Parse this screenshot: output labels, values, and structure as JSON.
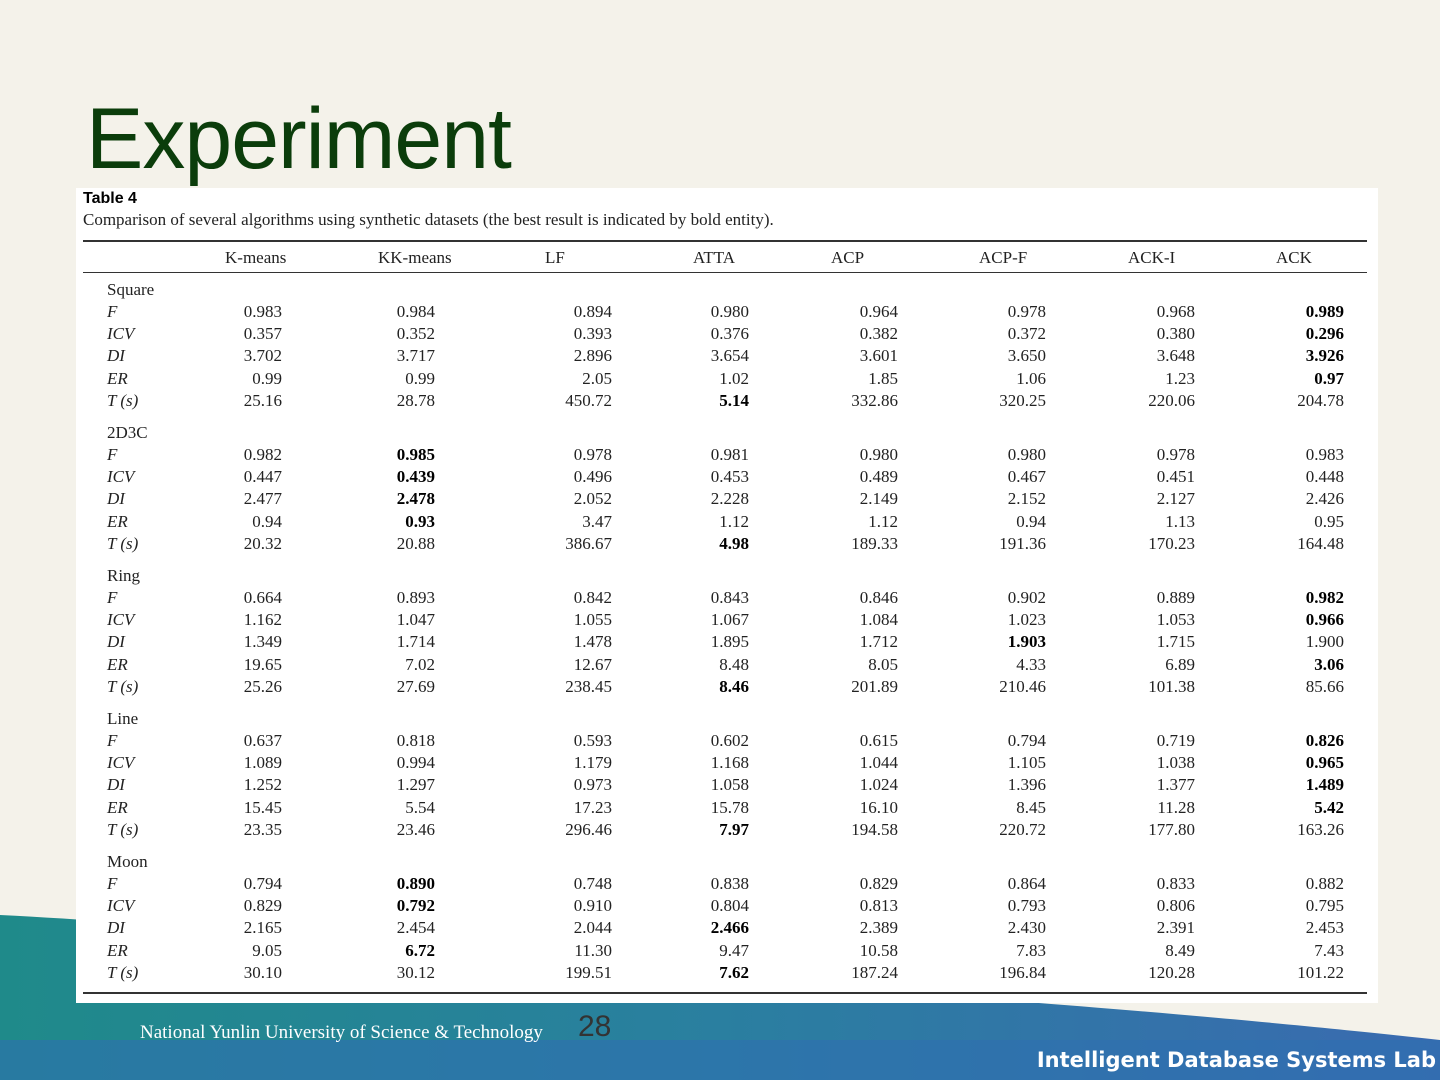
{
  "slide": {
    "title": "Experiment",
    "page_number": "28",
    "university": "National Yunlin University of Science & Technology",
    "lab": "Intelligent Database Systems Lab"
  },
  "table": {
    "label": "Table 4",
    "caption": "Comparison of several algorithms using synthetic datasets (the best result is indicated by bold entity).",
    "columns": [
      "K-means",
      "KK-means",
      "LF",
      "ATTA",
      "ACP",
      "ACP-F",
      "ACK-I",
      "ACK"
    ],
    "groups": [
      {
        "name": "Square",
        "rows": [
          {
            "label": "F",
            "values": [
              "0.983",
              "0.984",
              "0.894",
              "0.980",
              "0.964",
              "0.978",
              "0.968",
              "0.989"
            ],
            "bold": [
              7
            ]
          },
          {
            "label": "ICV",
            "values": [
              "0.357",
              "0.352",
              "0.393",
              "0.376",
              "0.382",
              "0.372",
              "0.380",
              "0.296"
            ],
            "bold": [
              7
            ]
          },
          {
            "label": "DI",
            "values": [
              "3.702",
              "3.717",
              "2.896",
              "3.654",
              "3.601",
              "3.650",
              "3.648",
              "3.926"
            ],
            "bold": [
              7
            ]
          },
          {
            "label": "ER",
            "values": [
              "0.99",
              "0.99",
              "2.05",
              "1.02",
              "1.85",
              "1.06",
              "1.23",
              "0.97"
            ],
            "bold": [
              7
            ]
          },
          {
            "label": "T (s)",
            "values": [
              "25.16",
              "28.78",
              "450.72",
              "5.14",
              "332.86",
              "320.25",
              "220.06",
              "204.78"
            ],
            "bold": [
              3
            ]
          }
        ]
      },
      {
        "name": "2D3C",
        "rows": [
          {
            "label": "F",
            "values": [
              "0.982",
              "0.985",
              "0.978",
              "0.981",
              "0.980",
              "0.980",
              "0.978",
              "0.983"
            ],
            "bold": [
              1
            ]
          },
          {
            "label": "ICV",
            "values": [
              "0.447",
              "0.439",
              "0.496",
              "0.453",
              "0.489",
              "0.467",
              "0.451",
              "0.448"
            ],
            "bold": [
              1
            ]
          },
          {
            "label": "DI",
            "values": [
              "2.477",
              "2.478",
              "2.052",
              "2.228",
              "2.149",
              "2.152",
              "2.127",
              "2.426"
            ],
            "bold": [
              1
            ]
          },
          {
            "label": "ER",
            "values": [
              "0.94",
              "0.93",
              "3.47",
              "1.12",
              "1.12",
              "0.94",
              "1.13",
              "0.95"
            ],
            "bold": [
              1
            ]
          },
          {
            "label": "T (s)",
            "values": [
              "20.32",
              "20.88",
              "386.67",
              "4.98",
              "189.33",
              "191.36",
              "170.23",
              "164.48"
            ],
            "bold": [
              3
            ]
          }
        ]
      },
      {
        "name": "Ring",
        "rows": [
          {
            "label": "F",
            "values": [
              "0.664",
              "0.893",
              "0.842",
              "0.843",
              "0.846",
              "0.902",
              "0.889",
              "0.982"
            ],
            "bold": [
              7
            ]
          },
          {
            "label": "ICV",
            "values": [
              "1.162",
              "1.047",
              "1.055",
              "1.067",
              "1.084",
              "1.023",
              "1.053",
              "0.966"
            ],
            "bold": [
              7
            ]
          },
          {
            "label": "DI",
            "values": [
              "1.349",
              "1.714",
              "1.478",
              "1.895",
              "1.712",
              "1.903",
              "1.715",
              "1.900"
            ],
            "bold": [
              5
            ]
          },
          {
            "label": "ER",
            "values": [
              "19.65",
              "7.02",
              "12.67",
              "8.48",
              "8.05",
              "4.33",
              "6.89",
              "3.06"
            ],
            "bold": [
              7
            ]
          },
          {
            "label": "T (s)",
            "values": [
              "25.26",
              "27.69",
              "238.45",
              "8.46",
              "201.89",
              "210.46",
              "101.38",
              "85.66"
            ],
            "bold": [
              3
            ]
          }
        ]
      },
      {
        "name": "Line",
        "rows": [
          {
            "label": "F",
            "values": [
              "0.637",
              "0.818",
              "0.593",
              "0.602",
              "0.615",
              "0.794",
              "0.719",
              "0.826"
            ],
            "bold": [
              7
            ]
          },
          {
            "label": "ICV",
            "values": [
              "1.089",
              "0.994",
              "1.179",
              "1.168",
              "1.044",
              "1.105",
              "1.038",
              "0.965"
            ],
            "bold": [
              7
            ]
          },
          {
            "label": "DI",
            "values": [
              "1.252",
              "1.297",
              "0.973",
              "1.058",
              "1.024",
              "1.396",
              "1.377",
              "1.489"
            ],
            "bold": [
              7
            ]
          },
          {
            "label": "ER",
            "values": [
              "15.45",
              "5.54",
              "17.23",
              "15.78",
              "16.10",
              "8.45",
              "11.28",
              "5.42"
            ],
            "bold": [
              7
            ]
          },
          {
            "label": "T (s)",
            "values": [
              "23.35",
              "23.46",
              "296.46",
              "7.97",
              "194.58",
              "220.72",
              "177.80",
              "163.26"
            ],
            "bold": [
              3
            ]
          }
        ]
      },
      {
        "name": "Moon",
        "rows": [
          {
            "label": "F",
            "values": [
              "0.794",
              "0.890",
              "0.748",
              "0.838",
              "0.829",
              "0.864",
              "0.833",
              "0.882"
            ],
            "bold": [
              1
            ]
          },
          {
            "label": "ICV",
            "values": [
              "0.829",
              "0.792",
              "0.910",
              "0.804",
              "0.813",
              "0.793",
              "0.806",
              "0.795"
            ],
            "bold": [
              1
            ]
          },
          {
            "label": "DI",
            "values": [
              "2.165",
              "2.454",
              "2.044",
              "2.466",
              "2.389",
              "2.430",
              "2.391",
              "2.453"
            ],
            "bold": [
              3
            ]
          },
          {
            "label": "ER",
            "values": [
              "9.05",
              "6.72",
              "11.30",
              "9.47",
              "10.58",
              "7.83",
              "8.49",
              "7.43"
            ],
            "bold": [
              1
            ]
          },
          {
            "label": "T (s)",
            "values": [
              "30.10",
              "30.12",
              "199.51",
              "7.62",
              "187.24",
              "196.84",
              "120.28",
              "101.22"
            ],
            "bold": [
              3
            ]
          }
        ]
      }
    ]
  }
}
